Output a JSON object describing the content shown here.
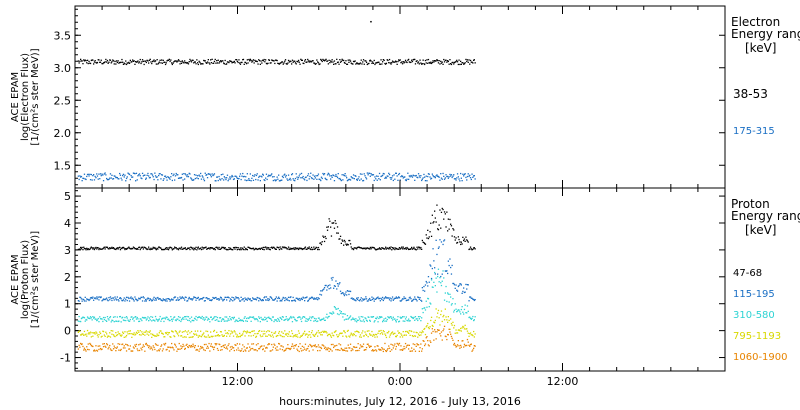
{
  "figure": {
    "xlabel": "hours:minutes, July 12, 2016 - July 13, 2016",
    "time_start_hours": 0,
    "time_end_hours": 48,
    "x_ticks": [
      {
        "label": "12:00",
        "hours": 12
      },
      {
        "label": "0:00",
        "hours": 24
      },
      {
        "label": "12:00",
        "hours": 36
      }
    ],
    "data_end_hours": 29.5
  },
  "chart_data": [
    {
      "type": "scatter",
      "title": "",
      "ylabel": [
        "ACE EPAM",
        "log(Electron Flux)",
        "[1/(cm²s ster MeV)]"
      ],
      "legend_title": [
        "Electron",
        "Energy range",
        "[keV]"
      ],
      "ylim": [
        1.15,
        3.95
      ],
      "yticks": [
        1.5,
        2.0,
        2.5,
        3.0,
        3.5
      ],
      "ytick_labels": [
        "1.5",
        "2.0",
        "2.5",
        "3.0",
        "3.5"
      ],
      "grid": false,
      "series": [
        {
          "name": "38-53",
          "color": "#000000",
          "baseline": 3.1,
          "noise": 0.04,
          "events": [
            {
              "t": 21.8,
              "v": 3.72
            }
          ]
        },
        {
          "name": "175-315",
          "color": "#1a6fc4",
          "baseline": 1.33,
          "noise": 0.06,
          "events": []
        }
      ]
    },
    {
      "type": "scatter",
      "title": "",
      "ylabel": [
        "ACE EPAM",
        "log(Proton Flux)",
        "[1/(cm²s ster MeV)]"
      ],
      "legend_title": [
        "Proton",
        "Energy range",
        "[keV]"
      ],
      "ylim": [
        -1.5,
        5.3
      ],
      "yticks": [
        -1,
        0,
        1,
        2,
        3,
        4,
        5
      ],
      "ytick_labels": [
        "-1",
        "0",
        "1",
        "2",
        "3",
        "4",
        "5"
      ],
      "grid": false,
      "series": [
        {
          "name": "47-68",
          "color": "#000000",
          "baseline": 3.08,
          "noise": 0.05,
          "events": [
            {
              "t0": 18.0,
              "t1": 20.3,
              "peak": 4.3
            },
            {
              "t0": 25.6,
              "t1": 29.0,
              "peak": 4.8
            }
          ]
        },
        {
          "name": "115-195",
          "color": "#1a6fc4",
          "baseline": 1.2,
          "noise": 0.08,
          "events": [
            {
              "t0": 18.0,
              "t1": 20.3,
              "peak": 2.3
            },
            {
              "t0": 25.6,
              "t1": 29.0,
              "peak": 3.6
            }
          ]
        },
        {
          "name": "310-580",
          "color": "#2ed3d3",
          "baseline": 0.45,
          "noise": 0.1,
          "events": [
            {
              "t0": 18.5,
              "t1": 20.3,
              "peak": 0.9
            },
            {
              "t0": 25.6,
              "t1": 29.0,
              "peak": 2.5
            }
          ]
        },
        {
          "name": "795-1193",
          "color": "#d8d800",
          "baseline": -0.1,
          "noise": 0.13,
          "events": [
            {
              "t0": 25.6,
              "t1": 29.0,
              "peak": 0.8
            }
          ]
        },
        {
          "name": "1060-1900",
          "color": "#e88400",
          "baseline": -0.6,
          "noise": 0.15,
          "events": [
            {
              "t0": 25.6,
              "t1": 29.0,
              "peak": 0.2
            }
          ]
        }
      ]
    }
  ]
}
